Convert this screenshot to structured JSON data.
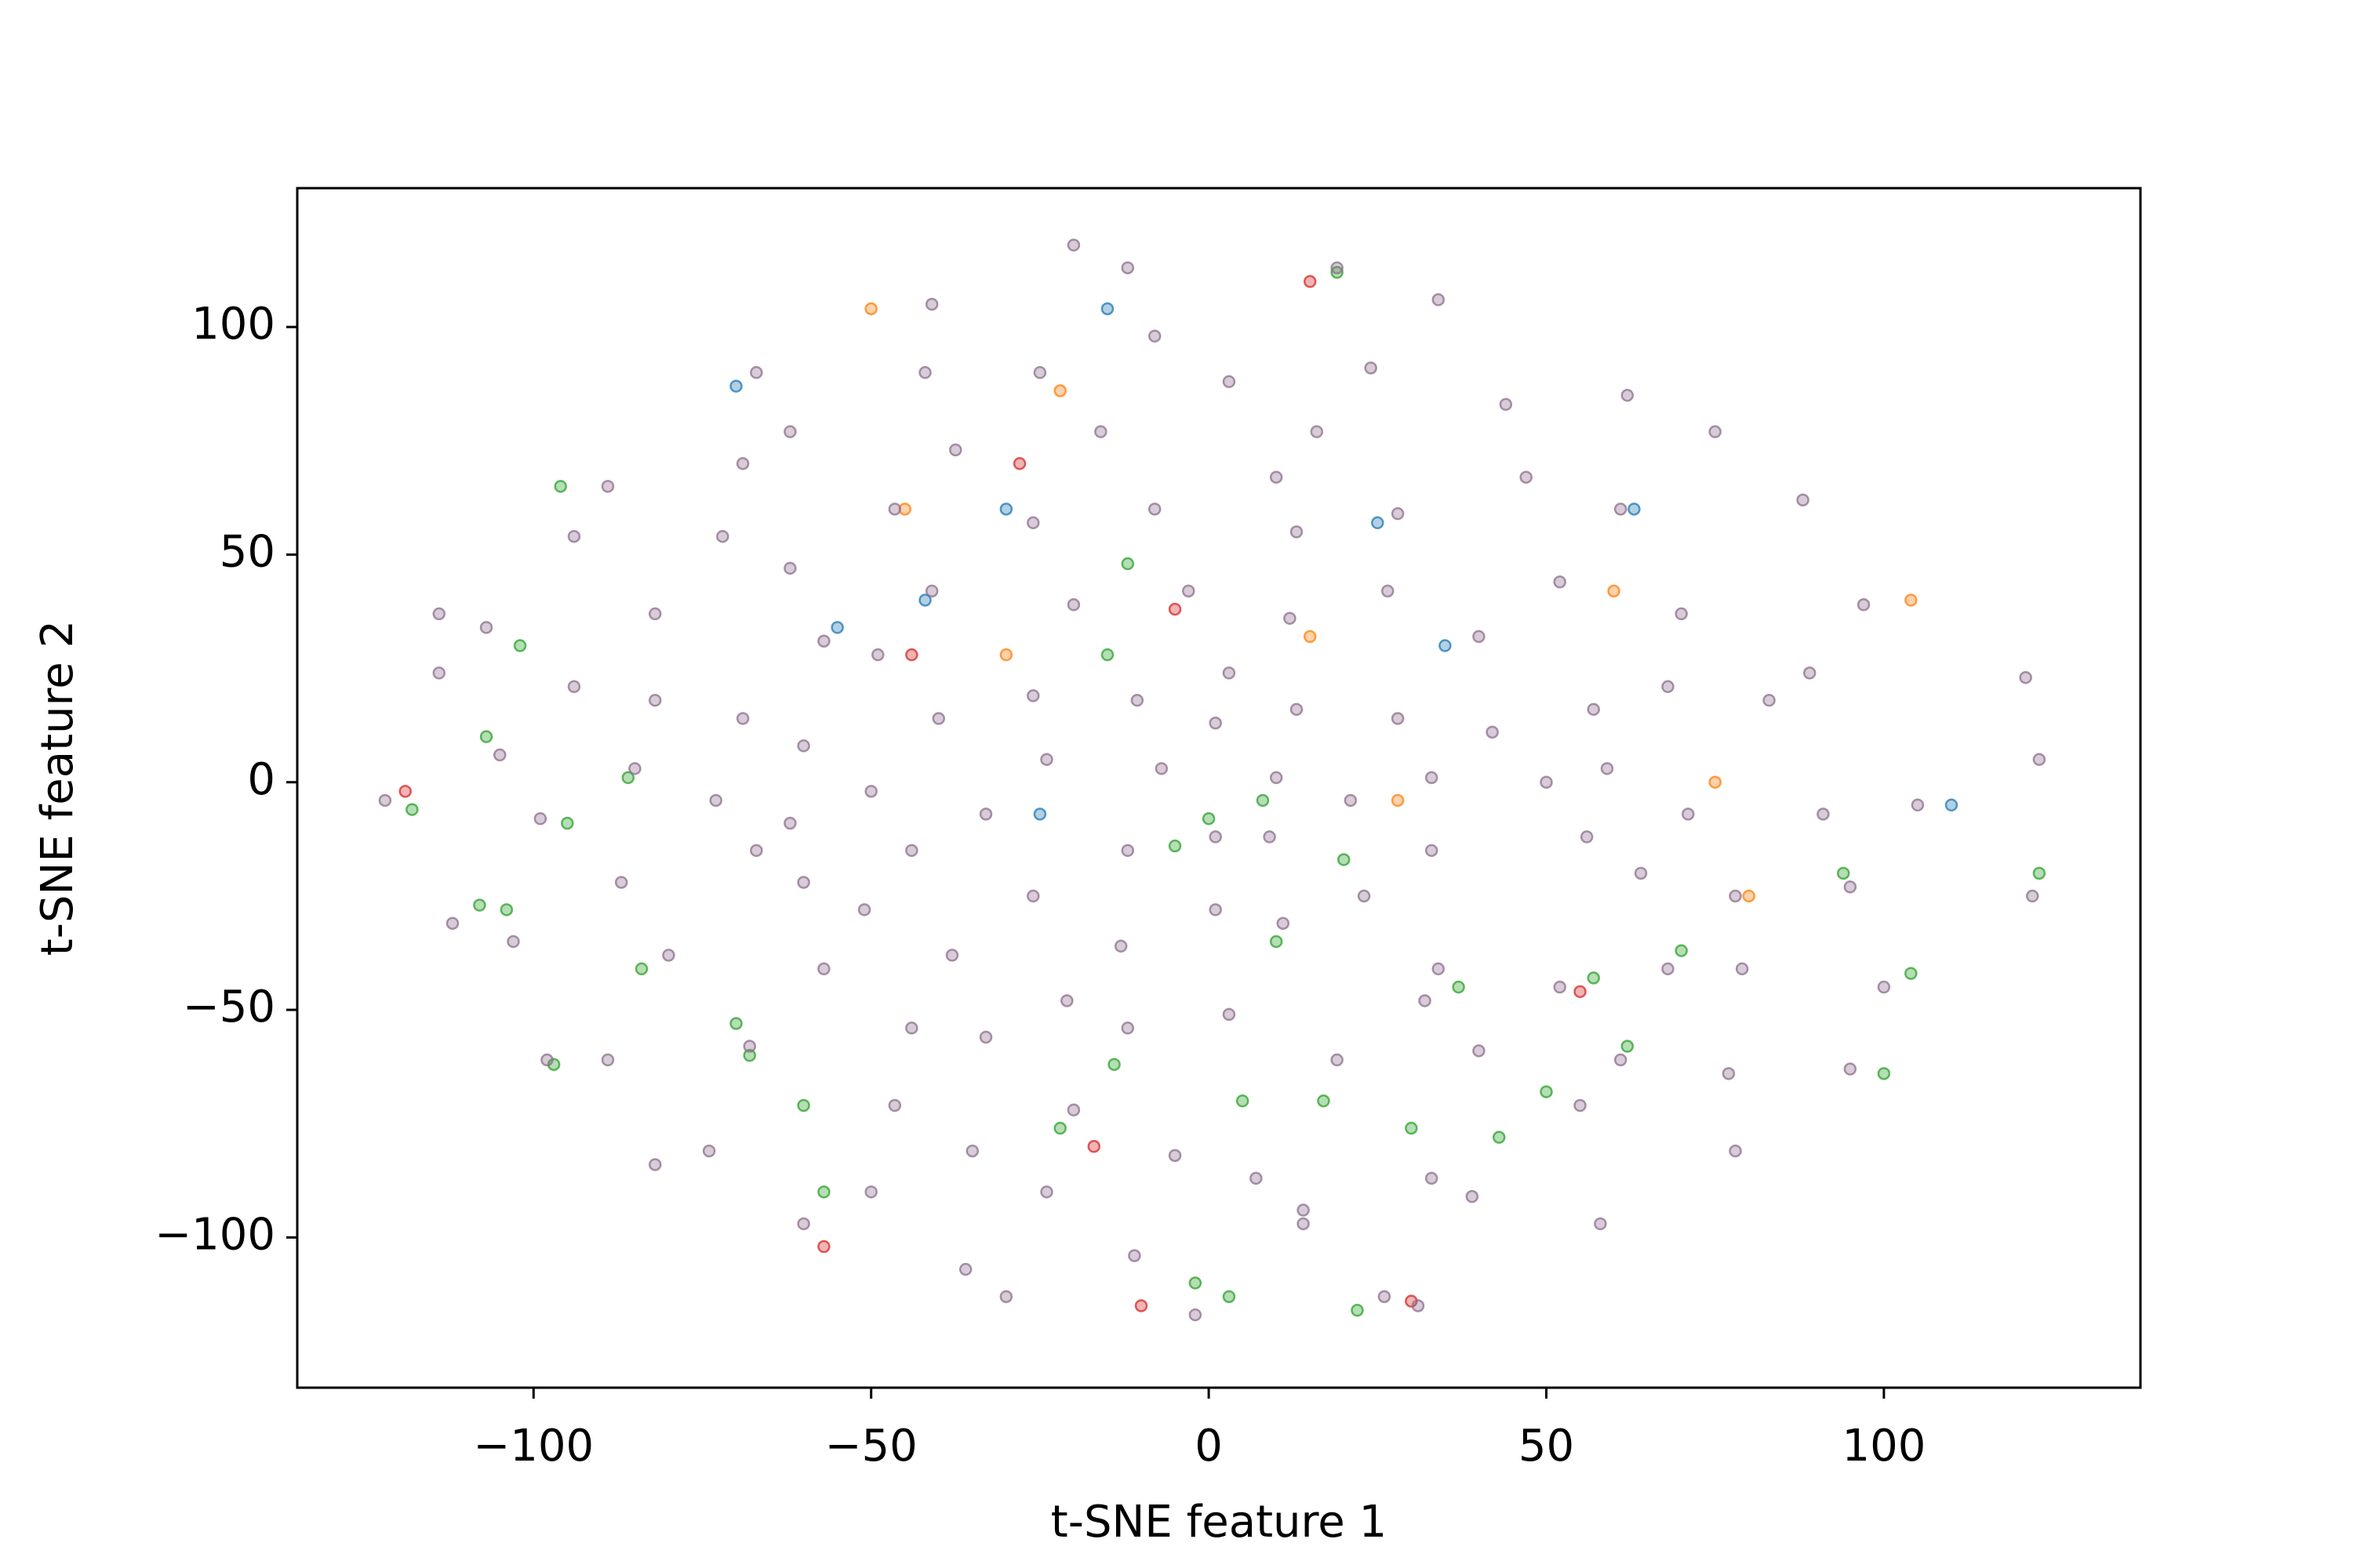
{
  "chart_data": {
    "type": "scatter",
    "xlabel": "t-SNE feature 1",
    "ylabel": "t-SNE feature 2",
    "xlim": [
      -135,
      138
    ],
    "ylim": [
      -133,
      130.5
    ],
    "xticks": [
      {
        "value": -100,
        "label": "−100"
      },
      {
        "value": -50,
        "label": "−50"
      },
      0,
      50,
      100
    ],
    "yticks": [
      {
        "value": -100,
        "label": "−100"
      },
      {
        "value": -50,
        "label": "−50"
      },
      0,
      50,
      100
    ],
    "grid": false,
    "series": [
      {
        "color": "#1f77b4",
        "x": [
          -70,
          -30,
          -42,
          25,
          35,
          -25,
          63,
          110,
          -55,
          -15
        ],
        "y": [
          87,
          60,
          40,
          57,
          30,
          -7,
          60,
          -5,
          34,
          104
        ]
      },
      {
        "color": "#ff7f0e",
        "x": [
          -50,
          -45,
          -30,
          15,
          60,
          80,
          -22,
          28,
          104,
          75
        ],
        "y": [
          104,
          60,
          28,
          32,
          42,
          -25,
          86,
          -4,
          40,
          0
        ]
      },
      {
        "color": "#2ca02c",
        "x": [
          -70,
          -68,
          -60,
          -108,
          -104,
          -97,
          -118,
          -107,
          -95,
          -84,
          5,
          17,
          10,
          20,
          -5,
          -14,
          -22,
          30,
          43,
          50,
          62,
          104,
          100,
          -86,
          -102,
          -96,
          22,
          -2,
          3,
          -57,
          19,
          0,
          8,
          -15,
          -12,
          37,
          123,
          94,
          70,
          57
        ],
        "y": [
          -53,
          -60,
          -71,
          -27,
          -28,
          -62,
          -6,
          10,
          -9,
          -41,
          -70,
          -70,
          -35,
          -17,
          -14,
          -62,
          -76,
          -76,
          -78,
          -68,
          -58,
          -42,
          -64,
          1,
          30,
          65,
          -116,
          -110,
          -113,
          -90,
          112,
          -8,
          -4,
          28,
          48,
          -45,
          -20,
          -20,
          -37,
          -43
        ]
      },
      {
        "color": "#d62728",
        "x": [
          -57,
          -10,
          30,
          -119,
          15,
          55,
          -5,
          -44,
          -28,
          -17
        ],
        "y": [
          -102,
          -115,
          -114,
          -2,
          110,
          -46,
          38,
          28,
          70,
          -80
        ]
      },
      {
        "color": "#8c6d8c",
        "x": [
          -20,
          -12,
          19,
          34,
          -41,
          -42,
          -67,
          -62,
          -69,
          -25,
          -8,
          3,
          24,
          44,
          62,
          75,
          -16,
          16,
          47,
          -89,
          -94,
          -72,
          -62,
          -37.5,
          -46.5,
          -26,
          -8,
          10,
          13,
          28,
          61,
          88,
          -114,
          -107,
          -82,
          -57,
          -41,
          -20,
          -3,
          12,
          26.5,
          40,
          52,
          70,
          97,
          -114,
          -94,
          -82,
          -69,
          -60,
          -49,
          -40,
          -26,
          -10.6,
          3,
          13,
          28,
          42,
          57,
          68,
          83,
          89,
          121,
          -122,
          -105,
          -85,
          -73,
          -62,
          -50,
          -33,
          -24,
          -7,
          1,
          10,
          21,
          33,
          50,
          59,
          71,
          91,
          105,
          123,
          -99,
          -87,
          -67,
          -60,
          -44,
          -26,
          -12,
          1,
          9,
          23,
          33,
          56,
          64,
          78,
          95,
          122,
          -112,
          -103,
          -80,
          -57,
          -51,
          -38,
          -13,
          1,
          11,
          34,
          52,
          68,
          79,
          100,
          -98,
          -89,
          -68,
          -44,
          -33,
          -21,
          -12,
          3,
          19,
          32,
          40,
          61,
          77,
          95,
          -82,
          -74,
          -46.5,
          -35,
          -20,
          -5,
          7,
          14,
          33,
          39,
          55,
          78,
          -60,
          -50,
          -24,
          -11,
          -2,
          14,
          58,
          -36,
          -30,
          26,
          31
        ],
        "y": [
          118,
          113,
          113,
          106,
          105,
          90,
          90,
          77,
          70,
          90,
          98,
          88,
          91,
          83,
          85,
          77,
          77,
          77,
          67,
          65,
          54,
          54,
          47,
          73,
          60,
          57,
          60,
          67,
          55,
          59,
          60,
          62,
          37,
          34,
          37,
          31,
          42,
          39,
          42,
          36,
          42,
          32,
          44,
          37,
          39,
          24,
          21,
          18,
          14,
          8,
          28,
          14,
          19,
          18,
          24,
          16,
          14,
          11,
          16,
          21,
          18,
          24,
          23,
          -4,
          6,
          3,
          -4,
          -9,
          -2,
          -7,
          5,
          3,
          13,
          1,
          -4,
          1,
          0,
          3,
          -7,
          -7,
          -5,
          5,
          -8,
          -22,
          -15,
          -22,
          -15,
          -25,
          -15,
          -12,
          -12,
          -25,
          -15,
          -12,
          -20,
          -25,
          -23,
          -25,
          -31,
          -35,
          -38,
          -41,
          -28,
          -38,
          -36,
          -28,
          -31,
          -41,
          -45,
          -41,
          -41,
          -45,
          -61,
          -61,
          -58,
          -54,
          -56,
          -48,
          -54,
          -51,
          -61,
          -48,
          -59,
          -61,
          -64,
          -63,
          -84,
          -81,
          -71,
          -81,
          -72,
          -82,
          -87,
          -94,
          -87,
          -91,
          -71,
          -81,
          -97,
          -90,
          -90,
          -104,
          -117,
          -97,
          -97,
          -107,
          -113,
          -113,
          -115
        ]
      }
    ]
  }
}
